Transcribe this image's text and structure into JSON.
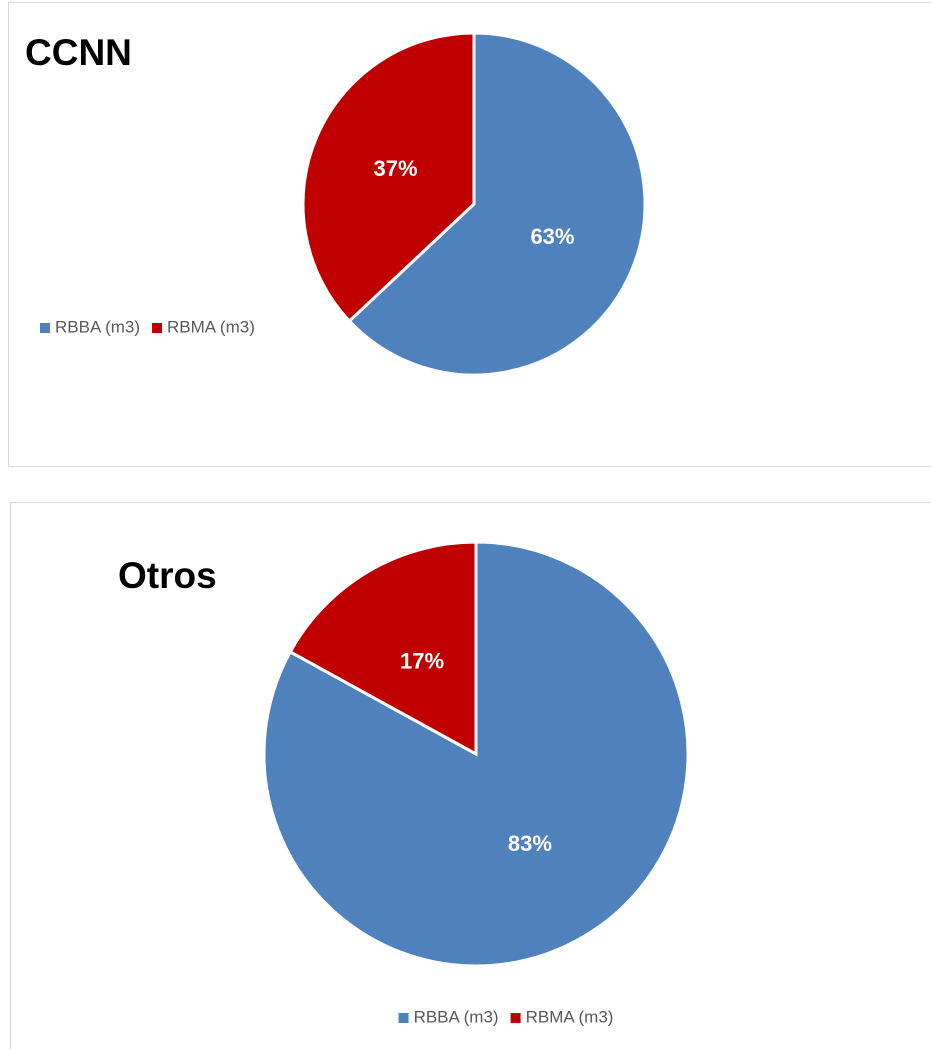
{
  "chart_data": [
    {
      "type": "pie",
      "title": "CCNN",
      "categories": [
        "RBBA (m3)",
        "RBMA (m3)"
      ],
      "values": [
        63,
        37
      ],
      "value_labels": [
        "63%",
        "37%"
      ],
      "colors": [
        "#4f81bd",
        "#c00000"
      ],
      "legend": "left"
    },
    {
      "type": "pie",
      "title": "Otros",
      "categories": [
        "RBBA (m3)",
        "RBMA (m3)"
      ],
      "values": [
        83,
        17
      ],
      "value_labels": [
        "83%",
        "17%"
      ],
      "colors": [
        "#4f81bd",
        "#c00000"
      ],
      "legend": "bottom"
    }
  ]
}
